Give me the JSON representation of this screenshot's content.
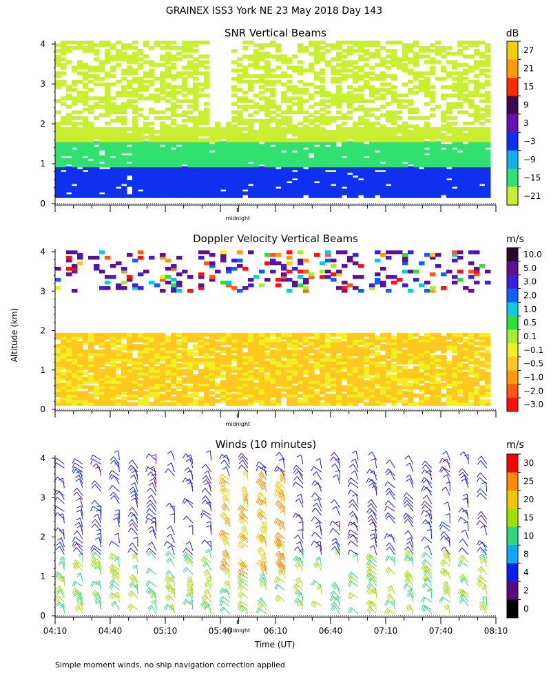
{
  "figure": {
    "title": "GRAINEX ISS3 York NE  23 May 2018 Day 143",
    "ylabel": "Altitude (km)",
    "xlabel": "Time (UT)",
    "footnote": "Simple moment winds, no ship navigation correction applied",
    "midnight_label": "midnight"
  },
  "chart_data": [
    {
      "type": "heatmap",
      "title": "SNR Vertical Beams",
      "unit": "dB",
      "ylim": [
        0,
        4
      ],
      "yticks": [
        "0",
        "1",
        "2",
        "3",
        "4"
      ],
      "colorbar_labels": [
        "27",
        "21",
        "15",
        "9",
        "3",
        "−3",
        "−9",
        "−15",
        "−21"
      ],
      "colorbar_colors": [
        "#f0d000",
        "#ff9a00",
        "#ff2a00",
        "#3a0a55",
        "#6a0fb5",
        "#1030f0",
        "#10b0f0",
        "#30e070",
        "#c8f030"
      ],
      "layers": [
        {
          "alt_range_km": [
            0.15,
            0.9
          ],
          "snr_range_db": [
            -3,
            3
          ]
        },
        {
          "alt_range_km": [
            0.9,
            1.5
          ],
          "snr_range_db": [
            -15,
            -9
          ]
        },
        {
          "alt_range_km": [
            1.5,
            1.9
          ],
          "snr_range_db": [
            -21,
            -15
          ]
        },
        {
          "alt_range_km": [
            1.9,
            4.0
          ],
          "snr_range_db": [
            -21,
            -15
          ],
          "coverage": "patchy"
        }
      ]
    },
    {
      "type": "heatmap",
      "title": "Doppler Velocity Vertical Beams",
      "unit": "m/s",
      "ylim": [
        0,
        4
      ],
      "yticks": [
        "0",
        "1",
        "2",
        "3",
        "4"
      ],
      "colorbar_labels": [
        "10.0",
        "5.0",
        "3.0",
        "2.0",
        "1.0",
        "0.5",
        "0.1",
        "−0.1",
        "−0.5",
        "−1.0",
        "−2.0",
        "−3.0"
      ],
      "colorbar_colors": [
        "#2a0a2a",
        "#5a1290",
        "#3a20d8",
        "#1060ff",
        "#10c8e0",
        "#30e030",
        "#a8ec30",
        "#f0f020",
        "#ffc820",
        "#ff9a10",
        "#ff5a10",
        "#ff1010"
      ],
      "layers": [
        {
          "alt_range_km": [
            0.1,
            1.9
          ],
          "velocity_range_ms": [
            -0.5,
            0.1
          ]
        },
        {
          "alt_range_km": [
            2.9,
            4.0
          ],
          "velocity_range_ms": [
            -3.0,
            10.0
          ],
          "coverage": "sparse"
        }
      ]
    },
    {
      "type": "wind_barbs",
      "title": "Winds (10 minutes)",
      "unit": "m/s",
      "ylim": [
        0,
        4
      ],
      "yticks": [
        "0",
        "1",
        "2",
        "3",
        "4"
      ],
      "colorbar_labels": [
        "30",
        "25",
        "20",
        "15",
        "10",
        "8",
        "4",
        "2",
        "0"
      ],
      "colorbar_colors": [
        "#ff0000",
        "#ff8c00",
        "#f0c800",
        "#a0e000",
        "#30d880",
        "#10a8f0",
        "#0a20f0",
        "#5a0a80",
        "#000000"
      ],
      "speed_profile_ms": [
        {
          "alt_range_km": [
            0,
            1.5
          ],
          "speed_range_ms": [
            10,
            20
          ]
        },
        {
          "alt_range_km": [
            1.5,
            4.0
          ],
          "speed_range_ms": [
            2,
            8
          ]
        },
        {
          "alt_range_km": [
            1.0,
            3.5
          ],
          "time_range_ut": [
            "05:40",
            "06:20"
          ],
          "speed_range_ms": [
            20,
            30
          ]
        }
      ]
    }
  ],
  "time_axis": {
    "ticks": [
      "04:10",
      "04:40",
      "05:10",
      "05:40",
      "06:10",
      "06:40",
      "07:10",
      "07:40",
      "08:10"
    ],
    "range_ut": [
      "04:10",
      "08:10"
    ],
    "midnight_ut": "06:00"
  }
}
